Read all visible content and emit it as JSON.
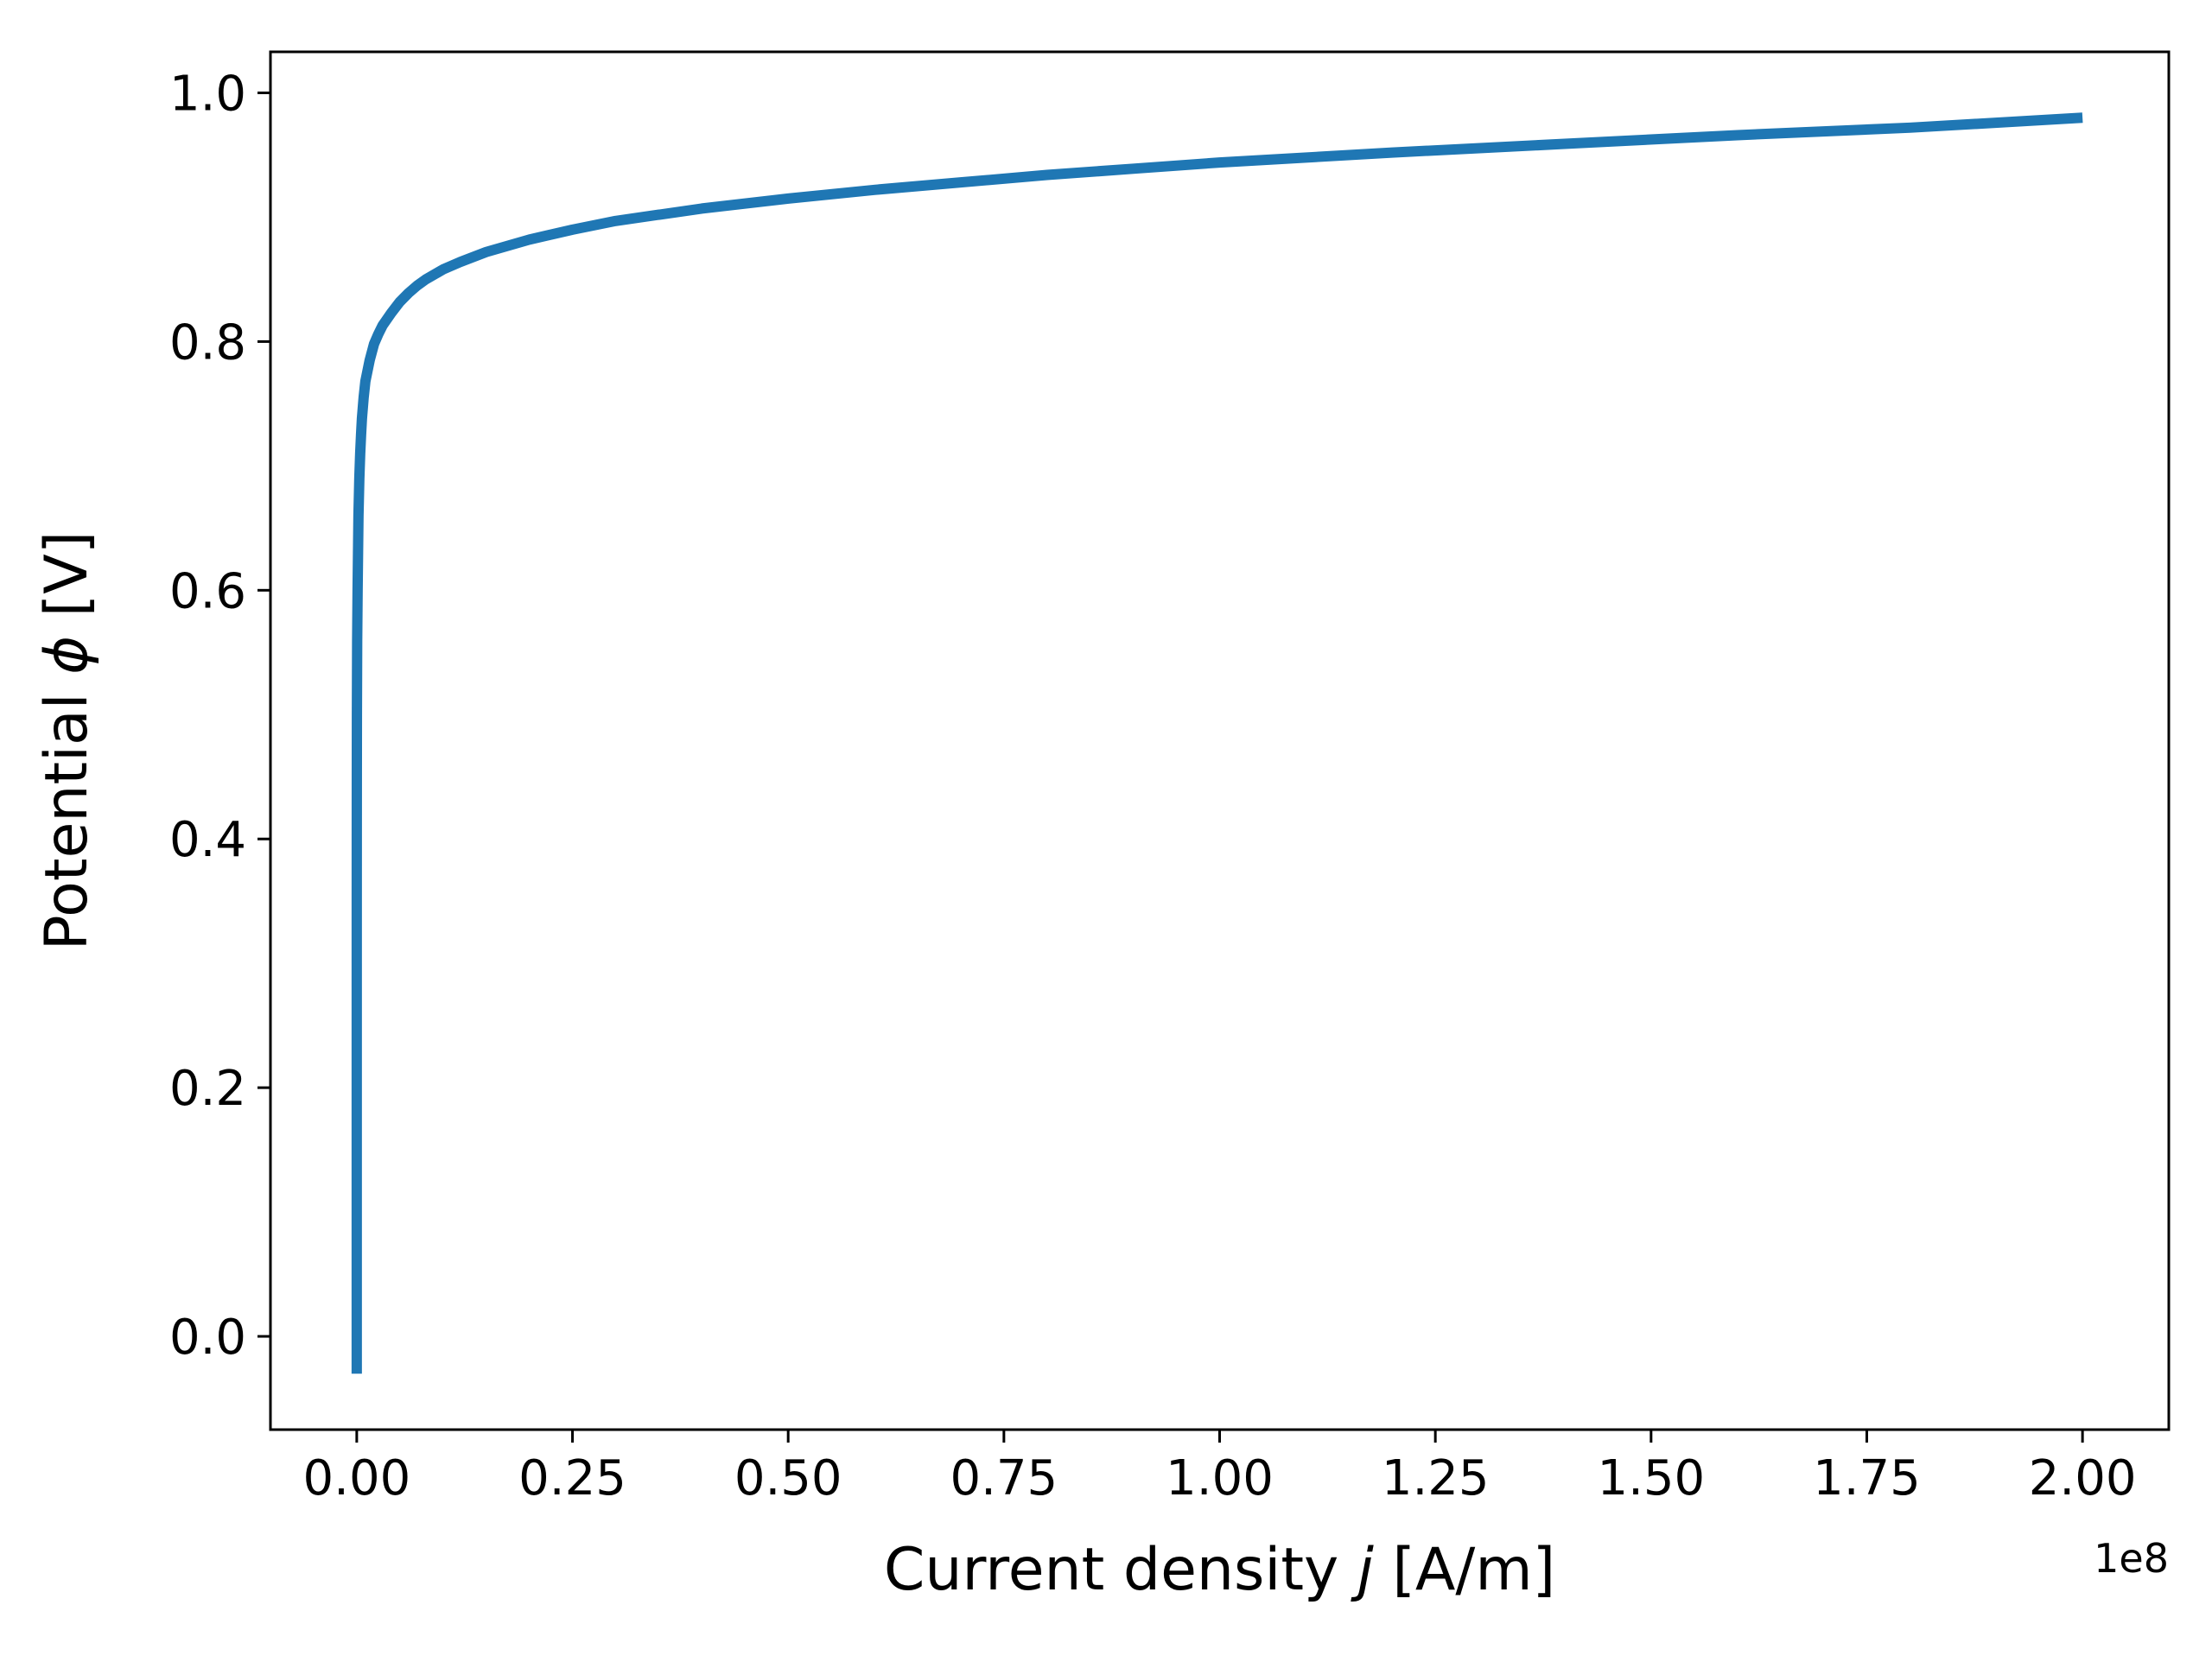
{
  "chart_data": {
    "type": "line",
    "title": "",
    "xlabel_main": "Current density ",
    "xlabel_symbol": "j",
    "xlabel_unit": " [A/m]",
    "ylabel_main": "Potential ",
    "ylabel_symbol": "ϕ",
    "ylabel_unit": " [V]",
    "x_offset_label": "1e8",
    "x_ticks": [
      "0.00",
      "0.25",
      "0.50",
      "0.75",
      "1.00",
      "1.25",
      "1.50",
      "1.75",
      "2.00"
    ],
    "y_ticks": [
      "0.0",
      "0.2",
      "0.4",
      "0.6",
      "0.8",
      "1.0"
    ],
    "xlim": [
      -0.1,
      2.1
    ],
    "ylim": [
      -0.075,
      1.033
    ],
    "x_scale_factor": 100000000,
    "grid": false,
    "line_color": "#1f77b4",
    "series": [
      {
        "x": [
          0,
          0,
          1e-06,
          1e-05,
          2e-05,
          5e-05,
          0.0001,
          0.0002,
          0.0005,
          0.001,
          0.0015,
          0.002,
          0.003,
          0.004,
          0.005,
          0.006,
          0.008,
          0.01,
          0.015,
          0.02,
          0.025,
          0.03,
          0.04,
          0.05,
          0.06,
          0.07,
          0.08,
          0.1,
          0.12,
          0.15,
          0.2,
          0.25,
          0.3,
          0.4,
          0.5,
          0.6,
          0.7,
          0.8,
          0.9,
          1.0,
          1.2,
          1.4,
          1.6,
          1.8,
          2.0
        ],
        "y": [
          -0.03,
          0.0,
          0.2,
          0.3,
          0.35,
          0.4,
          0.45,
          0.5,
          0.56,
          0.6,
          0.63,
          0.66,
          0.69,
          0.71,
          0.725,
          0.738,
          0.755,
          0.768,
          0.785,
          0.798,
          0.806,
          0.813,
          0.823,
          0.832,
          0.839,
          0.845,
          0.85,
          0.858,
          0.864,
          0.872,
          0.882,
          0.89,
          0.897,
          0.907,
          0.915,
          0.922,
          0.928,
          0.934,
          0.939,
          0.944,
          0.952,
          0.959,
          0.966,
          0.972,
          0.98
        ]
      }
    ]
  }
}
